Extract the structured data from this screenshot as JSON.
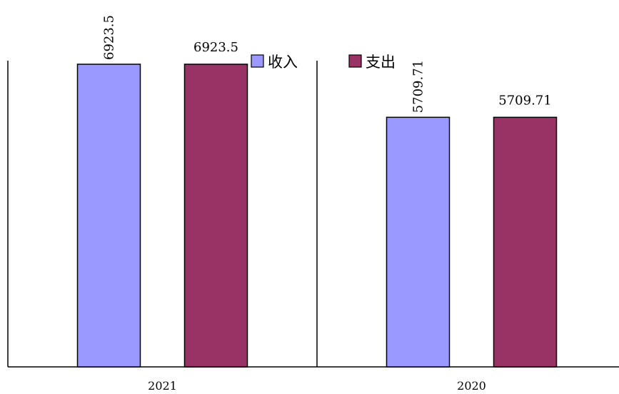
{
  "chart_data": {
    "type": "bar",
    "categories": [
      "2021",
      "2020"
    ],
    "series": [
      {
        "name": "收入",
        "color": "#9999ff",
        "values": [
          6923.5,
          5709.71
        ],
        "labels": [
          "6923.5",
          "5709.71"
        ],
        "label_rotated": true
      },
      {
        "name": "支出",
        "color": "#993366",
        "values": [
          6923.5,
          5709.71
        ],
        "labels": [
          "6923.5",
          "5709.71"
        ],
        "label_rotated": false
      }
    ],
    "title": "",
    "xlabel": "",
    "ylabel": "",
    "ylim": [
      0,
      6923.5
    ],
    "grid": false,
    "legend_position": "top-center"
  }
}
